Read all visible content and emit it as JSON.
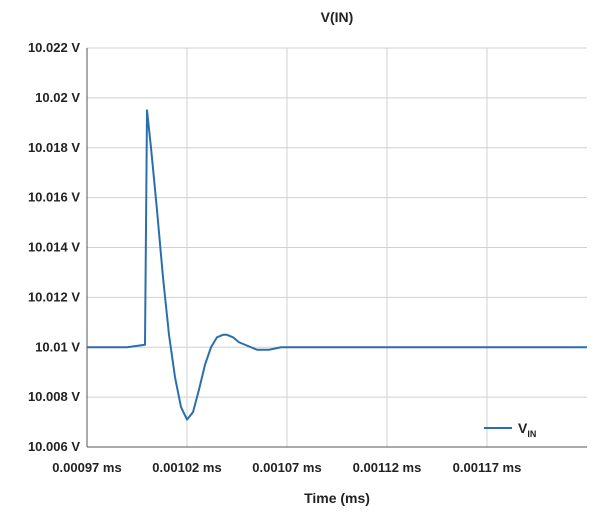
{
  "chart_data": {
    "type": "line",
    "title": "V(IN)",
    "xlabel": "Time (ms)",
    "ylabel": "",
    "xlim": [
      0.00097,
      0.00122
    ],
    "ylim": [
      10.006,
      10.022
    ],
    "x_ticks": [
      0.00097,
      0.00102,
      0.00107,
      0.00112,
      0.00117
    ],
    "x_tick_labels": [
      "0.00097 ms",
      "0.00102 ms",
      "0.00107 ms",
      "0.00112 ms",
      "0.00117 ms"
    ],
    "y_ticks": [
      10.006,
      10.008,
      10.01,
      10.012,
      10.014,
      10.016,
      10.018,
      10.02,
      10.022
    ],
    "y_tick_labels": [
      "10.006 V",
      "10.008 V",
      "10.01 V",
      "10.012 V",
      "10.014 V",
      "10.016 V",
      "10.018 V",
      "10.02 V",
      "10.022 V"
    ],
    "grid": true,
    "legend_position": "bottom-right",
    "colors": {
      "series": "#2a6fad",
      "grid": "#d0d0d0",
      "axis": "#555555"
    },
    "series": [
      {
        "name": "V",
        "name_subscript": "IN",
        "x": [
          0.00097,
          0.00099,
          0.000999,
          0.001,
          0.001002,
          0.001005,
          0.001008,
          0.001011,
          0.001014,
          0.001017,
          0.00102,
          0.001023,
          0.001026,
          0.001029,
          0.001032,
          0.001035,
          0.001038,
          0.00104,
          0.001043,
          0.001046,
          0.001049,
          0.001052,
          0.001055,
          0.001058,
          0.001061,
          0.001064,
          0.001067,
          0.00107,
          0.001073,
          0.001076,
          0.00108,
          0.001084,
          0.00109,
          0.001095,
          0.0011,
          0.00111,
          0.00112,
          0.00114,
          0.00117,
          0.0012,
          0.00122
        ],
        "y": [
          10.01,
          10.01,
          10.0101,
          10.0195,
          10.018,
          10.0155,
          10.0128,
          10.0105,
          10.0088,
          10.0076,
          10.0071,
          10.0074,
          10.0083,
          10.0093,
          10.01,
          10.0104,
          10.0105,
          10.0105,
          10.0104,
          10.0102,
          10.0101,
          10.01,
          10.0099,
          10.0099,
          10.0099,
          10.00995,
          10.01,
          10.01,
          10.01,
          10.01,
          10.01,
          10.01,
          10.01,
          10.01,
          10.01,
          10.01,
          10.01,
          10.01,
          10.01,
          10.01,
          10.01
        ]
      }
    ]
  }
}
